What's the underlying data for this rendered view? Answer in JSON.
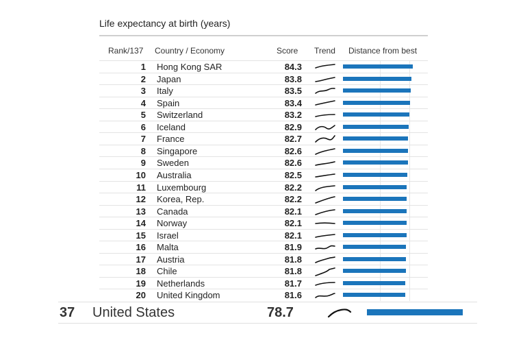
{
  "title": "Life expectancy at birth (years)",
  "headers": {
    "rank": "Rank/137",
    "country": "Country / Economy",
    "score": "Score",
    "trend": "Trend",
    "distance": "Distance from best"
  },
  "colors": {
    "bar": "#1b75bb",
    "trend": "#111111",
    "rule": "#cfcfcf"
  },
  "chart_data": {
    "type": "table",
    "columns": [
      "Rank/137",
      "Country / Economy",
      "Score",
      "Trend",
      "Distance from best"
    ],
    "best_score": 84.3,
    "rows": [
      {
        "rank": "1",
        "country": "Hong Kong SAR",
        "score": "84.3"
      },
      {
        "rank": "2",
        "country": "Japan",
        "score": "83.8"
      },
      {
        "rank": "3",
        "country": "Italy",
        "score": "83.5"
      },
      {
        "rank": "4",
        "country": "Spain",
        "score": "83.4"
      },
      {
        "rank": "5",
        "country": "Switzerland",
        "score": "83.2"
      },
      {
        "rank": "6",
        "country": "Iceland",
        "score": "82.9"
      },
      {
        "rank": "7",
        "country": "France",
        "score": "82.7"
      },
      {
        "rank": "8",
        "country": "Singapore",
        "score": "82.6"
      },
      {
        "rank": "9",
        "country": "Sweden",
        "score": "82.6"
      },
      {
        "rank": "10",
        "country": "Australia",
        "score": "82.5"
      },
      {
        "rank": "11",
        "country": "Luxembourg",
        "score": "82.2"
      },
      {
        "rank": "12",
        "country": "Korea, Rep.",
        "score": "82.2"
      },
      {
        "rank": "13",
        "country": "Canada",
        "score": "82.1"
      },
      {
        "rank": "14",
        "country": "Norway",
        "score": "82.1"
      },
      {
        "rank": "15",
        "country": "Israel",
        "score": "82.1"
      },
      {
        "rank": "16",
        "country": "Malta",
        "score": "81.9"
      },
      {
        "rank": "17",
        "country": "Austria",
        "score": "81.8"
      },
      {
        "rank": "18",
        "country": "Chile",
        "score": "81.8"
      },
      {
        "rank": "19",
        "country": "Netherlands",
        "score": "81.7"
      },
      {
        "rank": "20",
        "country": "United Kingdom",
        "score": "81.6"
      }
    ],
    "highlight": {
      "rank": "37",
      "country": "United States",
      "score": "78.7"
    }
  }
}
